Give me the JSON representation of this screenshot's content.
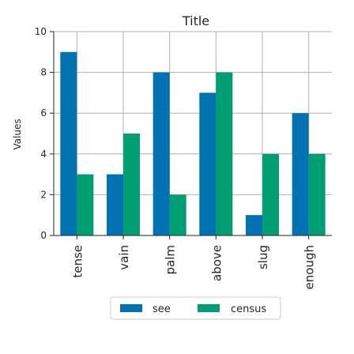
{
  "chart_data": {
    "type": "bar",
    "title": "Title",
    "xlabel": "",
    "ylabel": "Values",
    "ylim": [
      0,
      10
    ],
    "yticks": [
      0,
      2,
      4,
      6,
      8,
      10
    ],
    "grid": true,
    "legend_position": "bottom",
    "categories": [
      "tense",
      "vain",
      "palm",
      "above",
      "slug",
      "enough"
    ],
    "series": [
      {
        "name": "see",
        "color": "#0072b2",
        "values": [
          9,
          3,
          8,
          7,
          1,
          6
        ]
      },
      {
        "name": "census",
        "color": "#009e73",
        "values": [
          3,
          5,
          2,
          8,
          4,
          4
        ]
      }
    ]
  }
}
